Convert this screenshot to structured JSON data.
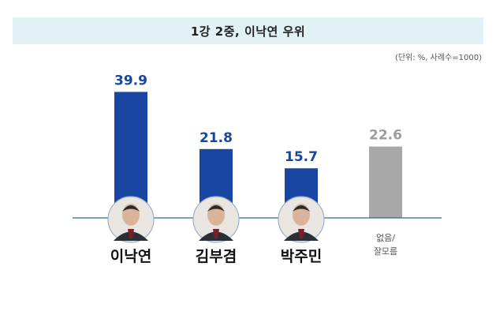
{
  "header": {
    "title": "1강 2중, 이낙연 우위",
    "unit_note": "(단위: %, 사례수=1000)"
  },
  "chart_data": {
    "type": "bar",
    "title": "1강 2중, 이낙연 우위",
    "categories": [
      "이낙연",
      "김부겸",
      "박주민",
      "없음/\n잘모름"
    ],
    "values": [
      39.9,
      21.8,
      15.7,
      22.6
    ],
    "value_labels": [
      "39.9",
      "21.8",
      "15.7",
      "22.6"
    ],
    "colors": [
      "#1a46a3",
      "#1a46a3",
      "#1a46a3",
      "#a8a8a8"
    ],
    "label_colors": [
      "#1a46a3",
      "#1a46a3",
      "#1a46a3",
      "#9c9c9c"
    ],
    "has_photo": [
      true,
      true,
      true,
      false
    ],
    "ylim": [
      0,
      45
    ],
    "grid": false,
    "legend": "none"
  }
}
